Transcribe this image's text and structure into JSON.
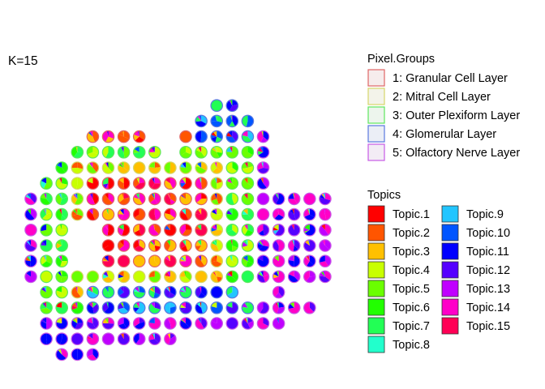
{
  "chart_data": {
    "type": "scatter-pie",
    "title": "K=15",
    "legends": {
      "groups": {
        "title": "Pixel.Groups",
        "entries": [
          {
            "label": "1: Granular Cell Layer",
            "fill": "#f6ecec",
            "stroke": "#e06666"
          },
          {
            "label": "2: Mitral Cell Layer",
            "fill": "#f3f3ea",
            "stroke": "#d6d66a"
          },
          {
            "label": "3: Outer Plexiform Layer",
            "fill": "#edf5ed",
            "stroke": "#5ee65e"
          },
          {
            "label": "4: Glomerular Layer",
            "fill": "#ebeef6",
            "stroke": "#5a78e0"
          },
          {
            "label": "5: Olfactory Nerve Layer",
            "fill": "#f3ecf5",
            "stroke": "#c75ae6"
          }
        ]
      },
      "topics": {
        "title": "Topics",
        "entries": [
          {
            "label": "Topic.1",
            "color": "#ff0000"
          },
          {
            "label": "Topic.2",
            "color": "#ff5500"
          },
          {
            "label": "Topic.3",
            "color": "#ffc000"
          },
          {
            "label": "Topic.4",
            "color": "#c8ff00"
          },
          {
            "label": "Topic.5",
            "color": "#6aff00"
          },
          {
            "label": "Topic.6",
            "color": "#22ff00"
          },
          {
            "label": "Topic.7",
            "color": "#22ff55"
          },
          {
            "label": "Topic.8",
            "color": "#22ffcc"
          },
          {
            "label": "Topic.9",
            "color": "#22c5ff"
          },
          {
            "label": "Topic.10",
            "color": "#0055ff"
          },
          {
            "label": "Topic.11",
            "color": "#0000ff"
          },
          {
            "label": "Topic.12",
            "color": "#5500ff"
          },
          {
            "label": "Topic.13",
            "color": "#c000ff"
          },
          {
            "label": "Topic.14",
            "color": "#ff00c8"
          },
          {
            "label": "Topic.15",
            "color": "#ff0055"
          }
        ]
      }
    },
    "grid": {
      "rows": [
        {
          "y": 1,
          "x_ranges": [
            [
              12,
              13
            ]
          ]
        },
        {
          "y": 2,
          "x_ranges": [
            [
              11,
              14
            ]
          ]
        },
        {
          "y": 3,
          "x_ranges": [
            [
              4,
              7
            ],
            [
              10,
              15
            ]
          ]
        },
        {
          "y": 4,
          "x_ranges": [
            [
              3,
              8
            ],
            [
              10,
              15
            ]
          ]
        },
        {
          "y": 5,
          "x_ranges": [
            [
              2,
              15
            ]
          ]
        },
        {
          "y": 6,
          "x_ranges": [
            [
              1,
              15
            ]
          ]
        },
        {
          "y": 7,
          "x_ranges": [
            [
              0,
              19
            ]
          ]
        },
        {
          "y": 8,
          "x_ranges": [
            [
              0,
              19
            ]
          ]
        },
        {
          "y": 9,
          "x_ranges": [
            [
              0,
              19
            ]
          ]
        },
        {
          "y": 10,
          "x_ranges": [
            [
              0,
              19
            ]
          ]
        },
        {
          "y": 11,
          "x_ranges": [
            [
              0,
              19
            ]
          ]
        },
        {
          "y": 12,
          "x_ranges": [
            [
              0,
              19
            ]
          ]
        },
        {
          "y": 13,
          "x_ranges": [
            [
              1,
              13
            ],
            [
              15,
              16
            ]
          ]
        },
        {
          "y": 14,
          "x_ranges": [
            [
              1,
              18
            ]
          ]
        },
        {
          "y": 15,
          "x_ranges": [
            [
              1,
              16
            ]
          ]
        },
        {
          "y": 16,
          "x_ranges": [
            [
              1,
              9
            ]
          ]
        },
        {
          "y": 17,
          "x_ranges": [
            [
              2,
              4
            ]
          ]
        }
      ],
      "gaps": [
        [
          3,
          9
        ],
        [
          4,
          9
        ],
        [
          3,
          10
        ],
        [
          4,
          10
        ],
        [
          3,
          11
        ],
        [
          4,
          11
        ],
        [
          14,
          13
        ],
        [
          15,
          13
        ]
      ],
      "zones": [
        {
          "name": "granular",
          "dominant_topics": [
            1,
            2,
            3,
            14,
            15
          ],
          "group": 1
        },
        {
          "name": "mitral",
          "dominant_topics": [
            3,
            4,
            5,
            2
          ],
          "group": 2
        },
        {
          "name": "outer_plexiform",
          "dominant_topics": [
            5,
            6,
            7,
            4
          ],
          "group": 3
        },
        {
          "name": "glomerular",
          "dominant_topics": [
            9,
            10,
            11,
            12,
            7
          ],
          "group": 4
        },
        {
          "name": "olfactory_nerve",
          "dominant_topics": [
            12,
            13,
            14,
            11
          ],
          "group": 5
        }
      ]
    }
  }
}
